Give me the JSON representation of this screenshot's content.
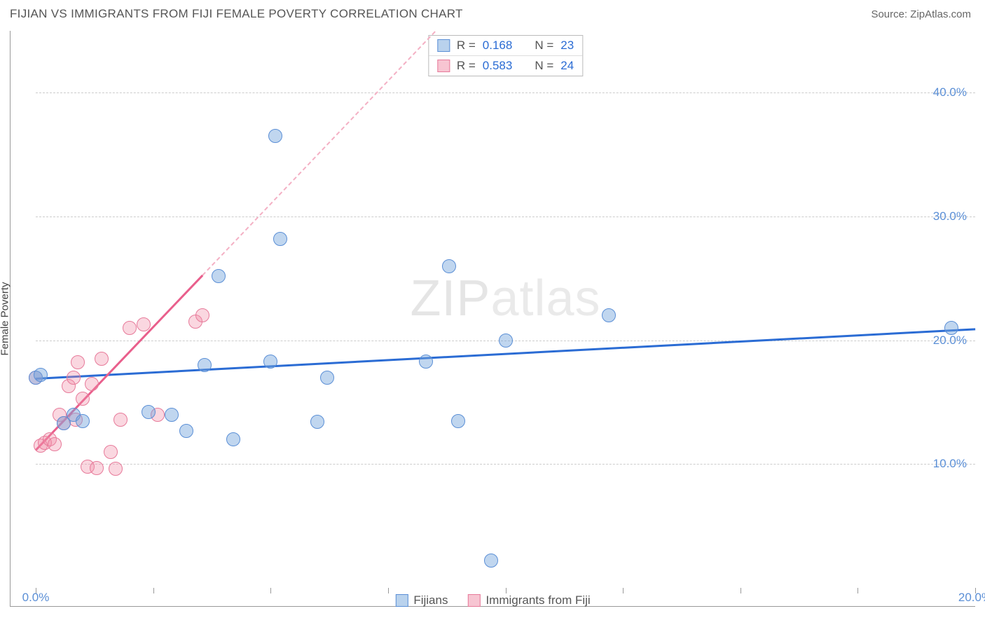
{
  "header": {
    "title": "FIJIAN VS IMMIGRANTS FROM FIJI FEMALE POVERTY CORRELATION CHART",
    "source": "Source: ZipAtlas.com"
  },
  "chart": {
    "type": "scatter",
    "ylabel": "Female Poverty",
    "watermark_a": "ZIP",
    "watermark_b": "atlas",
    "background_color": "#ffffff",
    "grid_color": "#cccccc",
    "axis_color": "#999999",
    "tick_label_color": "#5b8fd6",
    "xlim": [
      0,
      20
    ],
    "ylim": [
      0,
      45
    ],
    "x_ticks": [
      0,
      2.5,
      5,
      7.5,
      10,
      12.5,
      15,
      17.5,
      20
    ],
    "x_tick_labels": {
      "0": "0.0%",
      "20": "20.0%"
    },
    "y_gridlines": [
      10,
      20,
      30,
      40
    ],
    "y_tick_labels": {
      "10": "10.0%",
      "20": "20.0%",
      "30": "30.0%",
      "40": "40.0%"
    },
    "point_radius": 10,
    "series": {
      "fijians": {
        "label": "Fijians",
        "color_fill": "rgba(115,165,220,0.45)",
        "color_stroke": "#5b8fd6",
        "trend_color": "#2b6cd4",
        "R": "0.168",
        "N": "23",
        "trend": {
          "x1": 0,
          "y1": 17.0,
          "x2": 20,
          "y2": 21.0,
          "solid_until_x": 20
        },
        "points": [
          [
            0.0,
            17.0
          ],
          [
            0.1,
            17.2
          ],
          [
            0.6,
            13.3
          ],
          [
            0.8,
            14.0
          ],
          [
            1.0,
            13.5
          ],
          [
            2.4,
            14.2
          ],
          [
            2.9,
            14.0
          ],
          [
            3.2,
            12.7
          ],
          [
            3.6,
            18.0
          ],
          [
            3.9,
            25.2
          ],
          [
            4.2,
            12.0
          ],
          [
            5.0,
            18.3
          ],
          [
            5.2,
            28.2
          ],
          [
            5.1,
            36.5
          ],
          [
            6.0,
            13.4
          ],
          [
            6.2,
            17.0
          ],
          [
            8.3,
            18.3
          ],
          [
            8.8,
            26.0
          ],
          [
            9.0,
            13.5
          ],
          [
            9.7,
            2.2
          ],
          [
            10.0,
            20.0
          ],
          [
            12.2,
            22.0
          ],
          [
            19.5,
            21.0
          ]
        ]
      },
      "immigrants": {
        "label": "Immigrants from Fiji",
        "color_fill": "rgba(240,140,165,0.35)",
        "color_stroke": "#e77a9a",
        "trend_color": "#e95f8c",
        "trend_dash_color": "#f4b0c4",
        "R": "0.583",
        "N": "24",
        "trend": {
          "x1": 0,
          "y1": 11.2,
          "x2": 8.5,
          "y2": 45.0,
          "solid_until_x": 3.55
        },
        "points": [
          [
            0.0,
            17.0
          ],
          [
            0.1,
            11.5
          ],
          [
            0.2,
            11.7
          ],
          [
            0.3,
            12.0
          ],
          [
            0.4,
            11.6
          ],
          [
            0.5,
            14.0
          ],
          [
            0.6,
            13.3
          ],
          [
            0.7,
            16.3
          ],
          [
            0.8,
            17.0
          ],
          [
            0.85,
            13.6
          ],
          [
            0.9,
            18.2
          ],
          [
            1.0,
            15.3
          ],
          [
            1.1,
            9.8
          ],
          [
            1.2,
            16.5
          ],
          [
            1.3,
            9.7
          ],
          [
            1.4,
            18.5
          ],
          [
            1.6,
            11.0
          ],
          [
            1.7,
            9.6
          ],
          [
            1.8,
            13.6
          ],
          [
            2.0,
            21.0
          ],
          [
            2.3,
            21.3
          ],
          [
            2.6,
            14.0
          ],
          [
            3.4,
            21.5
          ],
          [
            3.55,
            22.0
          ]
        ]
      }
    },
    "legend_top": {
      "r_label": "R  =",
      "n_label": "N  ="
    }
  }
}
